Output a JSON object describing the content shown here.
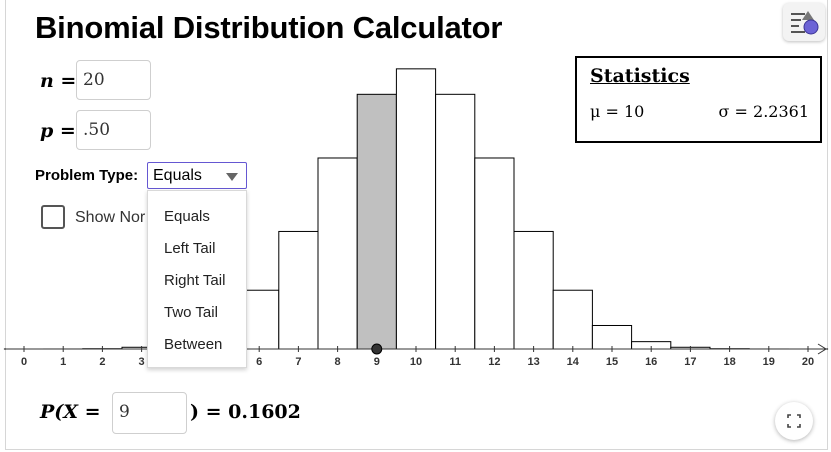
{
  "title": "Binomial Distribution Calculator",
  "inputs": {
    "n_label": "n =",
    "n_value": "20",
    "p_label": "p =",
    "p_value": ".50"
  },
  "problem_type": {
    "label": "Problem Type:",
    "selected": "Equals",
    "options": [
      "Equals",
      "Left Tail",
      "Right Tail",
      "Two Tail",
      "Between"
    ]
  },
  "show_normal": {
    "label": "Show Nor",
    "checked": false
  },
  "statistics": {
    "header": "Statistics",
    "mu": "μ = 10",
    "sigma": "σ = 2.2361"
  },
  "probability": {
    "label_left": "P(X =",
    "x_value": "9",
    "label_right": ") = 0.1602"
  },
  "icons": {
    "menu": "menu-icon",
    "fullscreen": "fullscreen-icon"
  },
  "chart_data": {
    "type": "bar",
    "categories": [
      "0",
      "1",
      "2",
      "3",
      "4",
      "5",
      "6",
      "7",
      "8",
      "9",
      "10",
      "11",
      "12",
      "13",
      "14",
      "15",
      "16",
      "17",
      "18",
      "19",
      "20"
    ],
    "values": [
      1e-06,
      1.9e-05,
      0.000181,
      0.001087,
      0.004621,
      0.014786,
      0.036964,
      0.073929,
      0.120134,
      0.160179,
      0.176197,
      0.160179,
      0.120134,
      0.073929,
      0.036964,
      0.014786,
      0.004621,
      0.001087,
      0.000181,
      1.9e-05,
      1e-06
    ],
    "highlighted": [
      "9"
    ],
    "xlim": [
      0,
      20.5
    ],
    "grid": false,
    "colors": {
      "bar": "#ffffff",
      "highlight": "#c0c0c0",
      "outline": "#000000",
      "point": "#333333"
    }
  }
}
